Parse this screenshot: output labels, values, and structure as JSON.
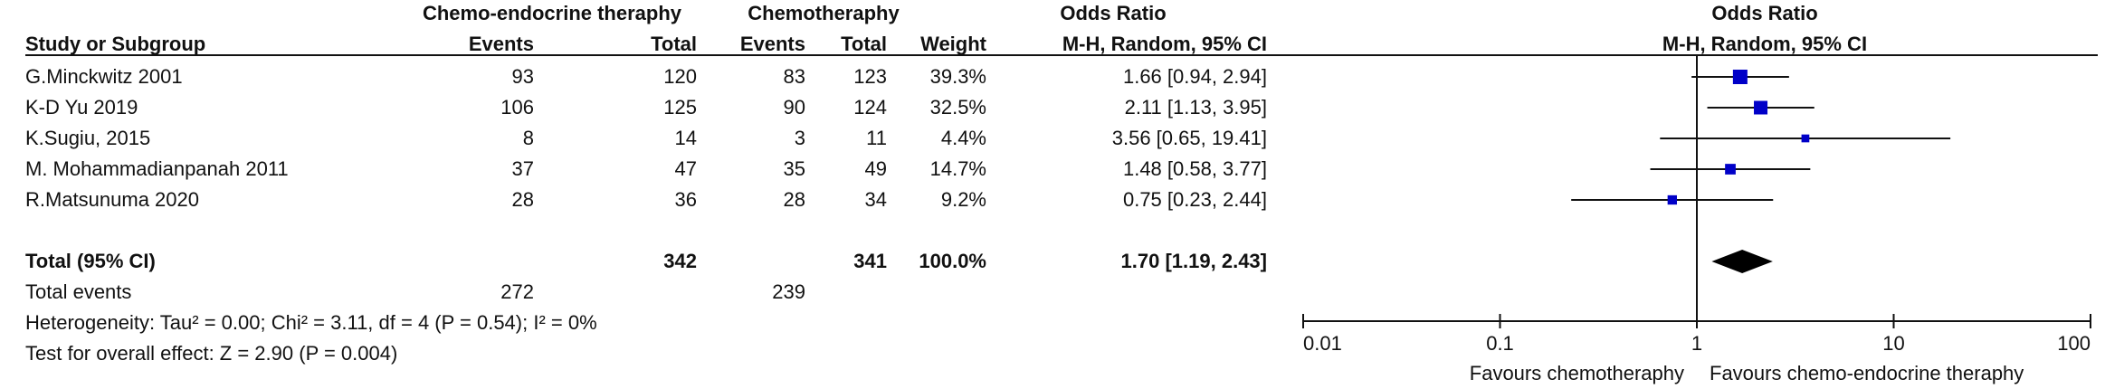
{
  "header": {
    "group_exp": "Chemo-endocrine theraphy",
    "group_ctl": "Chemotheraphy",
    "study_col": "Study or Subgroup",
    "events_exp": "Events",
    "total_exp": "Total",
    "events_ctl": "Events",
    "total_ctl": "Total",
    "weight": "Weight",
    "or_title": "Odds Ratio",
    "or_method": "M-H, Random, 95% CI",
    "plot_title": "Odds Ratio",
    "plot_method": "M-H, Random, 95% CI"
  },
  "studies": [
    {
      "name": "G.Minckwitz 2001",
      "events_exp": "93",
      "total_exp": "120",
      "events_ctl": "83",
      "total_ctl": "123",
      "weight": "39.3%",
      "or_text": "1.66 [0.94, 2.94]"
    },
    {
      "name": "K-D Yu 2019",
      "events_exp": "106",
      "total_exp": "125",
      "events_ctl": "90",
      "total_ctl": "124",
      "weight": "32.5%",
      "or_text": "2.11 [1.13, 3.95]"
    },
    {
      "name": "K.Sugiu, 2015",
      "events_exp": "8",
      "total_exp": "14",
      "events_ctl": "3",
      "total_ctl": "11",
      "weight": "4.4%",
      "or_text": "3.56 [0.65, 19.41]"
    },
    {
      "name": "M. Mohammadianpanah  2011",
      "events_exp": "37",
      "total_exp": "47",
      "events_ctl": "35",
      "total_ctl": "49",
      "weight": "14.7%",
      "or_text": "1.48 [0.58, 3.77]"
    },
    {
      "name": "R.Matsunuma 2020",
      "events_exp": "28",
      "total_exp": "36",
      "events_ctl": "28",
      "total_ctl": "34",
      "weight": "9.2%",
      "or_text": "0.75 [0.23, 2.44]"
    }
  ],
  "total": {
    "label": "Total (95% CI)",
    "total_exp": "342",
    "total_ctl": "341",
    "weight": "100.0%",
    "or_text": "1.70 [1.19, 2.43]"
  },
  "total_events": {
    "label": "Total events",
    "events_exp": "272",
    "events_ctl": "239"
  },
  "heterogeneity": "Heterogeneity: Tau² = 0.00; Chi² = 3.11, df = 4 (P = 0.54); I² = 0%",
  "overall_effect": "Test for overall effect: Z = 2.90 (P = 0.004)",
  "chart_data": {
    "type": "forest",
    "scale": "log",
    "xlim": [
      0.01,
      100
    ],
    "ticks": [
      {
        "value": 0.01,
        "label": "0.01"
      },
      {
        "value": 0.1,
        "label": "0.1"
      },
      {
        "value": 1,
        "label": "1"
      },
      {
        "value": 10,
        "label": "10"
      },
      {
        "value": 100,
        "label": "100"
      }
    ],
    "favours_left": "Favours chemotheraphy",
    "favours_right": "Favours chemo-endocrine theraphy",
    "points": [
      {
        "or": 1.66,
        "lo": 0.94,
        "hi": 2.94,
        "weight": 39.3
      },
      {
        "or": 2.11,
        "lo": 1.13,
        "hi": 3.95,
        "weight": 32.5
      },
      {
        "or": 3.56,
        "lo": 0.65,
        "hi": 19.41,
        "weight": 4.4
      },
      {
        "or": 1.48,
        "lo": 0.58,
        "hi": 3.77,
        "weight": 14.7
      },
      {
        "or": 0.75,
        "lo": 0.23,
        "hi": 2.44,
        "weight": 9.2
      }
    ],
    "pooled": {
      "or": 1.7,
      "lo": 1.19,
      "hi": 2.43
    },
    "colors": {
      "marker": "#0000c8",
      "pooled": "#000000",
      "line": "#111111"
    }
  }
}
